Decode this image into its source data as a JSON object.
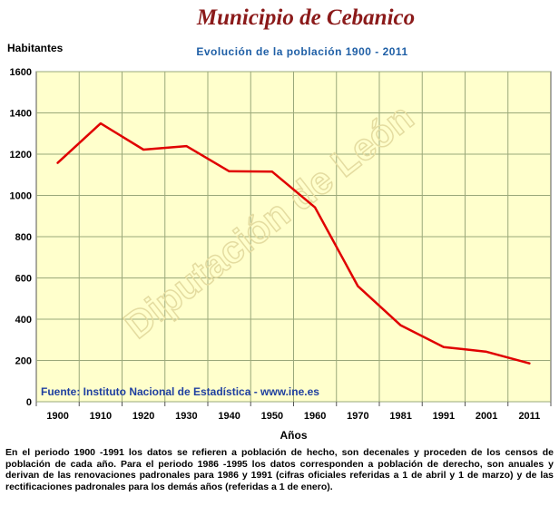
{
  "header": {
    "title": "Municipio de Cebanico",
    "subtitle": "Evolución de la población 1900 - 2011"
  },
  "chart_data": {
    "type": "line",
    "title": "Evolución de la población 1900 - 2011",
    "ylabel": "Habitantes",
    "xlabel": "Años",
    "ylim": [
      0,
      1600
    ],
    "yticks": [
      0,
      200,
      400,
      600,
      800,
      1000,
      1200,
      1400,
      1600
    ],
    "grid": true,
    "categories": [
      "1900",
      "1910",
      "1920",
      "1930",
      "1940",
      "1950",
      "1960",
      "1970",
      "1981",
      "1991",
      "2001",
      "2011"
    ],
    "series": [
      {
        "values": [
          1158,
          1349,
          1222,
          1239,
          1117,
          1115,
          942,
          560,
          370,
          265,
          242,
          186
        ],
        "color": "#e00000"
      }
    ],
    "plot_background": "#ffffcc",
    "grid_color": "#9aa87a",
    "source": "Fuente: Instituto Nacional de Estadística - www.ine.es",
    "source_color": "#1f3fa0",
    "watermark": "Diputación de León"
  },
  "footnote": "En el periodo 1900 -1991 los datos se refieren a población de hecho, son decenales y proceden de los censos de población de cada año. Para el periodo 1986 -1995 los datos corresponden a población de derecho, son anuales y derivan de las renovaciones padronales para 1986 y 1991 (cifras oficiales referidas a 1 de abril y 1 de marzo) y de las rectificaciones padronales para los demás años (referidas a 1 de enero)."
}
